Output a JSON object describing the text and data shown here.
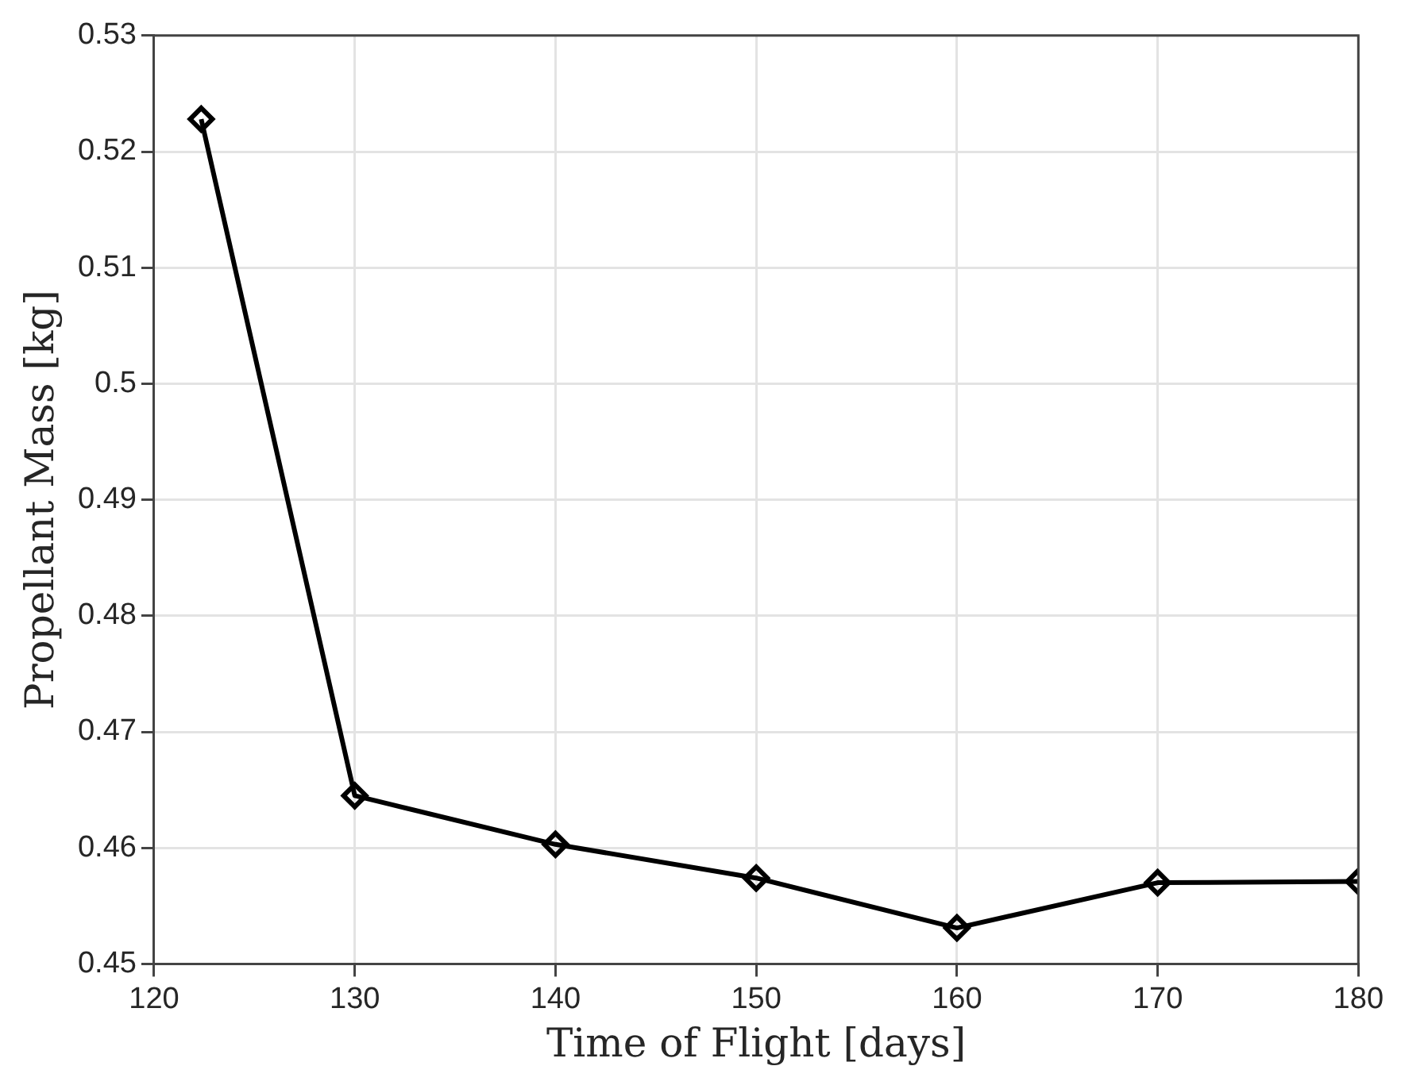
{
  "chart_data": {
    "type": "line",
    "xlabel": "Time of Flight [days]",
    "ylabel": "Propellant Mass [kg]",
    "x": [
      122.35,
      130,
      140,
      150,
      160,
      170,
      180
    ],
    "series": [
      {
        "color": "#000000",
        "values": [
          0.5228,
          0.4645,
          0.4603,
          0.4574,
          0.4531,
          0.457,
          0.4571
        ]
      }
    ],
    "xlim": [
      120,
      180
    ],
    "xticks": [
      120,
      130,
      140,
      150,
      160,
      170,
      180
    ],
    "ylim": [
      0.45,
      0.53
    ],
    "yticks": [
      0.45,
      0.46,
      0.47,
      0.48,
      0.49,
      0.5,
      0.51,
      0.52,
      0.53
    ],
    "grid": true,
    "legend": false,
    "marker": "diamond",
    "line_style": "solid"
  }
}
